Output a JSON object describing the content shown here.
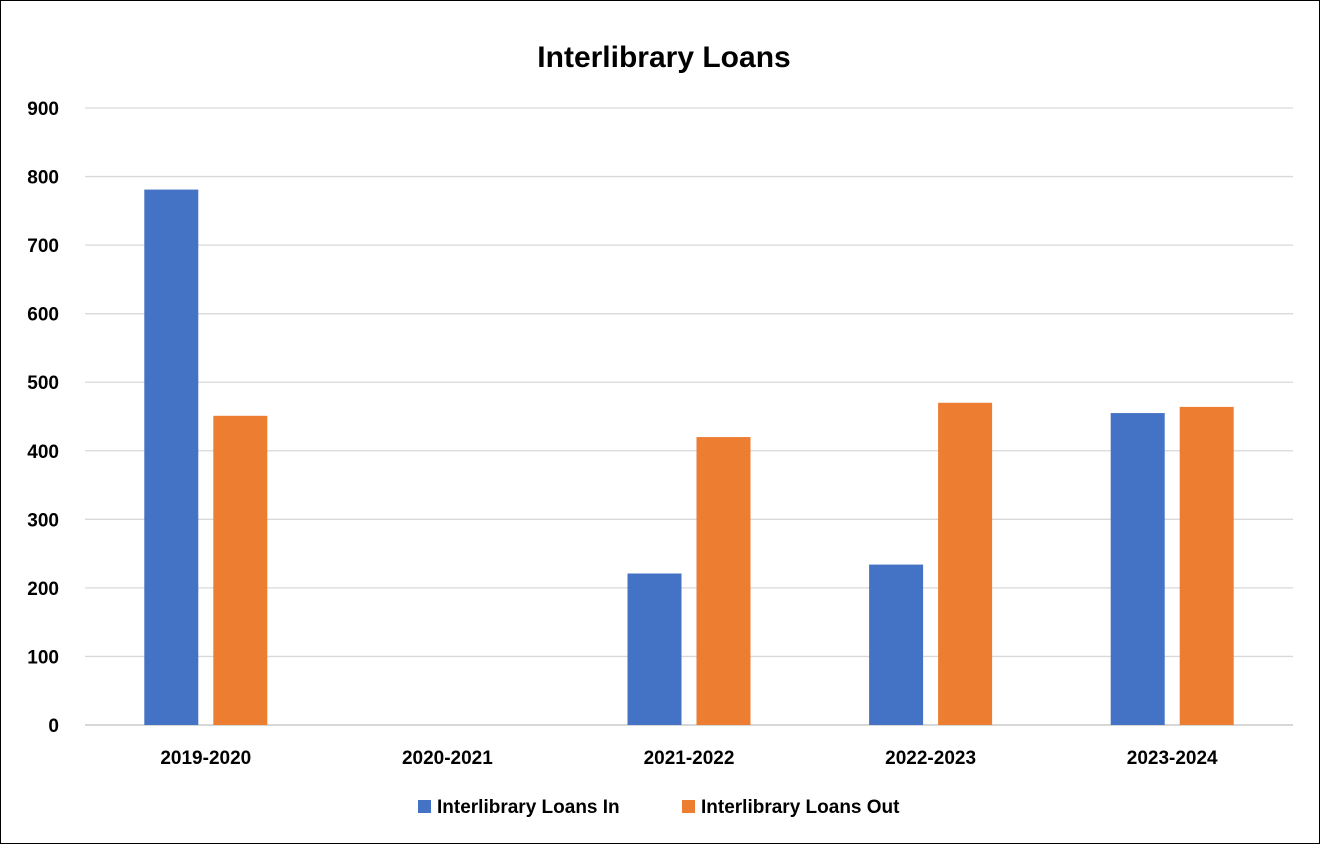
{
  "chart_data": {
    "type": "bar",
    "title": "Interlibrary Loans",
    "categories": [
      "2019-2020",
      "2020-2021",
      "2021-2022",
      "2022-2023",
      "2023-2024"
    ],
    "series": [
      {
        "name": "Interlibrary Loans In",
        "color": "#4472C4",
        "values": [
          781,
          null,
          221,
          234,
          455
        ]
      },
      {
        "name": "Interlibrary Loans Out",
        "color": "#ED7D31",
        "values": [
          451,
          null,
          420,
          470,
          464
        ]
      }
    ],
    "ylim": [
      0,
      900
    ],
    "yticks": [
      0,
      100,
      200,
      300,
      400,
      500,
      600,
      700,
      800,
      900
    ],
    "grid": true,
    "legend_position": "bottom"
  }
}
